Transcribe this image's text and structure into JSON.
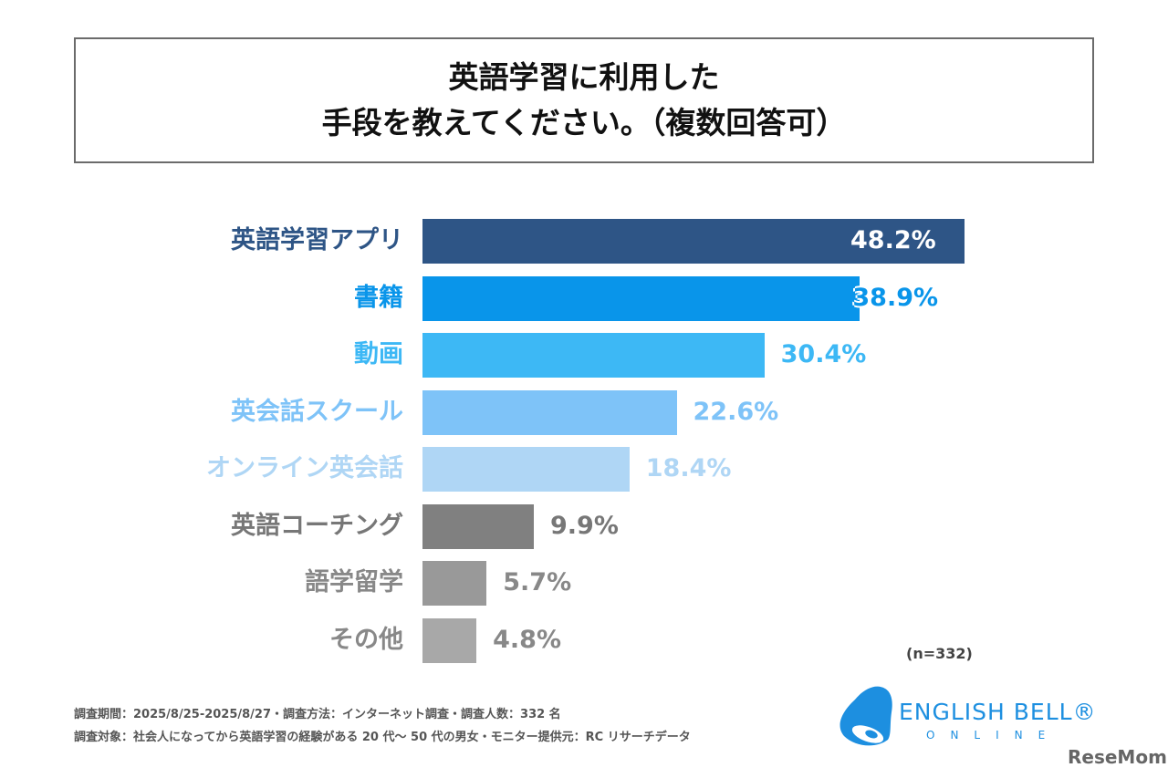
{
  "title": [
    "英語学習に利用した",
    "手段を教えてください。（複数回答可）"
  ],
  "chart_data": {
    "type": "bar",
    "orientation": "horizontal",
    "categories": [
      "英語学習アプリ",
      "書籍",
      "動画",
      "英会話スクール",
      "オンライン英会話",
      "英語コーチング",
      "語学留学",
      "その他"
    ],
    "values": [
      48.2,
      38.9,
      30.4,
      22.6,
      18.4,
      9.9,
      5.7,
      4.8
    ],
    "value_labels": [
      "48.2%",
      "38.9%",
      "30.4%",
      "22.6%",
      "18.4%",
      "9.9%",
      "5.7%",
      "4.8%"
    ],
    "colors": [
      "#2e5586",
      "#0995ea",
      "#3db8f5",
      "#7ec3f8",
      "#afd6f5",
      "#808080",
      "#999999",
      "#a8a8a8"
    ],
    "label_colors": [
      "#2e5586",
      "#0995ea",
      "#3db8f5",
      "#7ec3f8",
      "#afd6f5",
      "#777777",
      "#888888",
      "#888888"
    ],
    "unit": "%",
    "grid": false
  },
  "sample": "(n=332)",
  "footnotes": [
    "調査期間：2025/8/25-2025/8/27・調査方法：インターネット調査・調査人数：332 名",
    "調査対象：社会人になってから英語学習の経験がある 20 代～ 50 代の男女・モニター提供元：RC リサーチデータ"
  ],
  "logo": {
    "name": "ENGLISH BELL®",
    "sub": "ONLINE",
    "color": "#1d8fe0"
  },
  "watermark": "ReseMom"
}
